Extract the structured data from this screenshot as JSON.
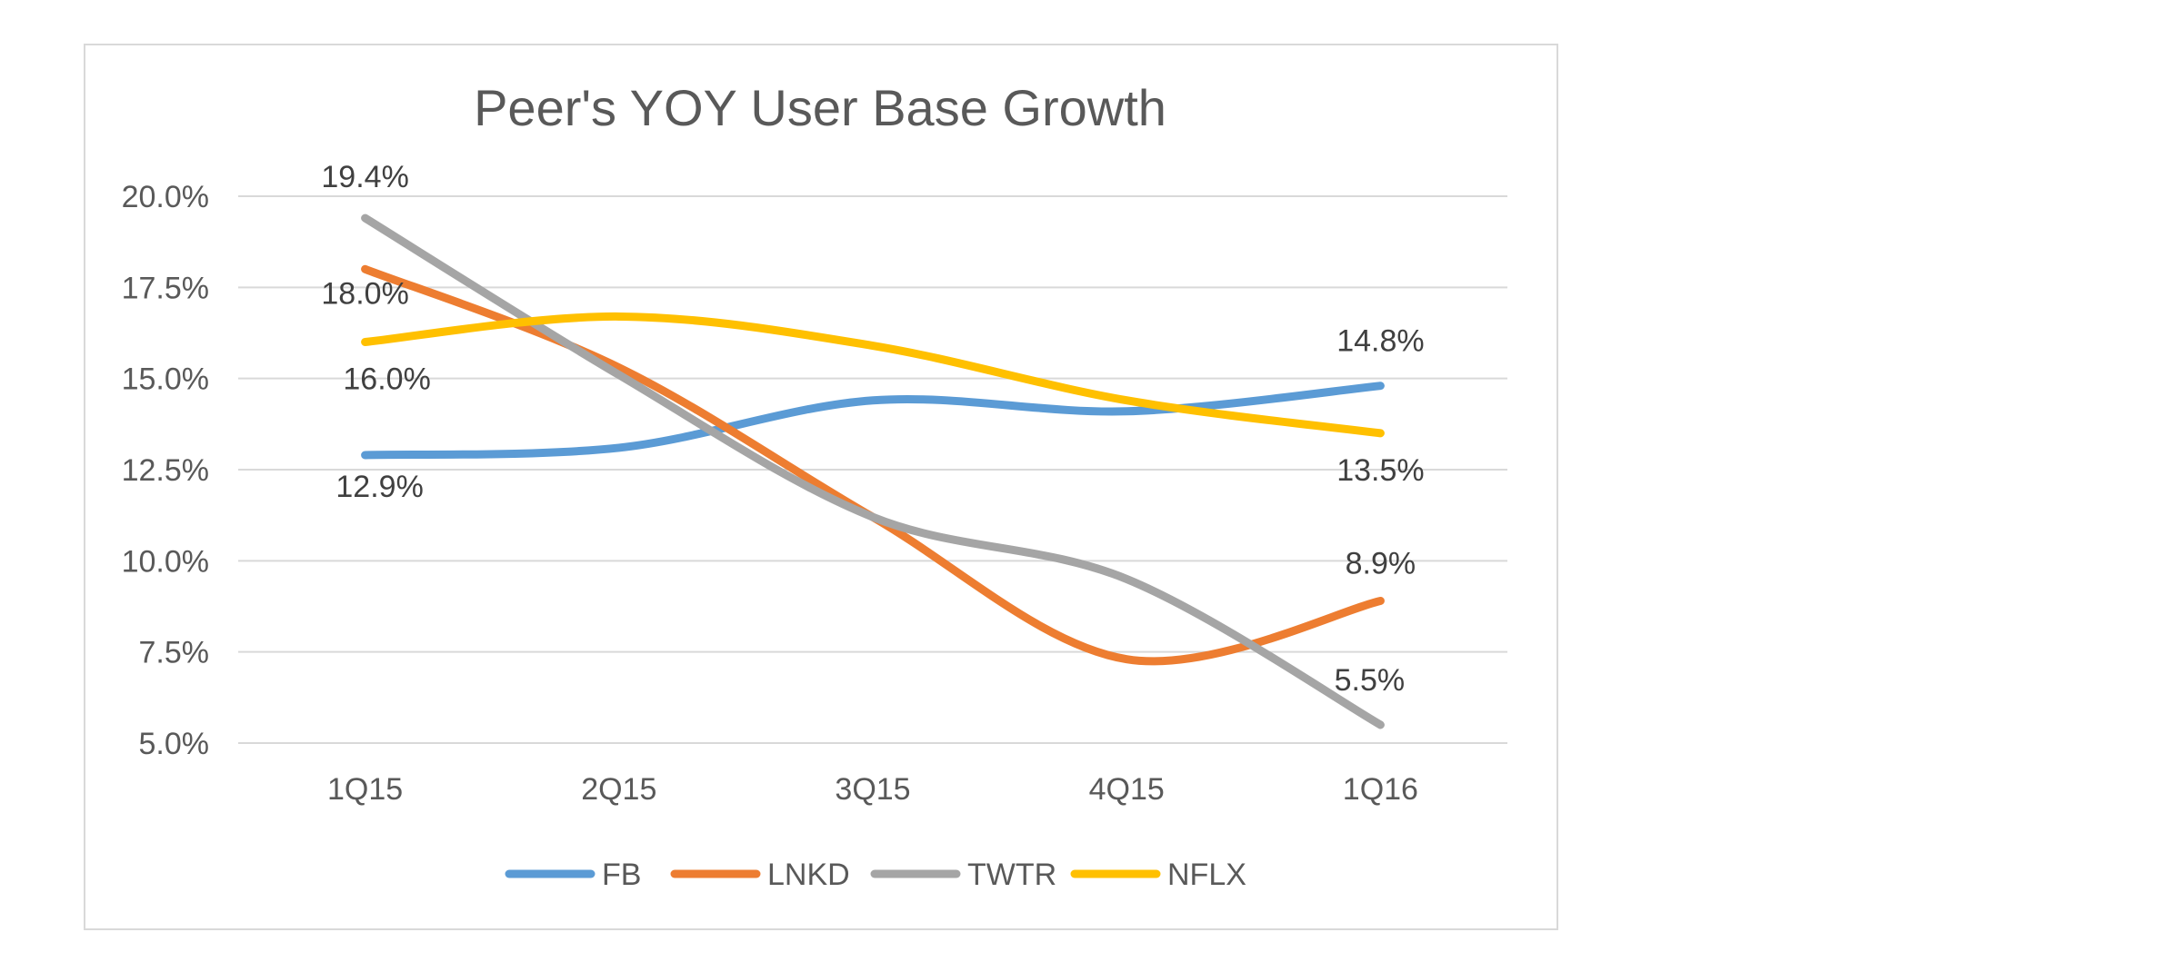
{
  "chart_data": {
    "type": "line",
    "title": "Peer's YOY User Base Growth",
    "categories": [
      "1Q15",
      "2Q15",
      "3Q15",
      "4Q15",
      "1Q16"
    ],
    "ylim": [
      5.0,
      20.0
    ],
    "yticks": [
      "5.0%",
      "7.5%",
      "10.0%",
      "12.5%",
      "15.0%",
      "17.5%",
      "20.0%"
    ],
    "grid": true,
    "smooth": true,
    "legend_position": "bottom",
    "series": [
      {
        "name": "FB",
        "color": "#5b9bd5",
        "values": [
          12.9,
          13.1,
          14.4,
          14.1,
          14.8
        ],
        "labels": {
          "0": "12.9%",
          "4": "14.8%"
        }
      },
      {
        "name": "LNKD",
        "color": "#ed7d31",
        "values": [
          18.0,
          15.3,
          11.2,
          7.3,
          8.9
        ],
        "labels": {
          "0": "18.0%",
          "4": "8.9%"
        }
      },
      {
        "name": "TWTR",
        "color": "#a5a5a5",
        "values": [
          19.4,
          15.1,
          11.2,
          9.5,
          5.5
        ],
        "labels": {
          "0": "19.4%",
          "4": "5.5%"
        }
      },
      {
        "name": "NFLX",
        "color": "#ffc000",
        "values": [
          16.0,
          16.7,
          15.9,
          14.4,
          13.5
        ],
        "labels": {
          "0": "16.0%",
          "4": "13.5%"
        }
      }
    ]
  }
}
